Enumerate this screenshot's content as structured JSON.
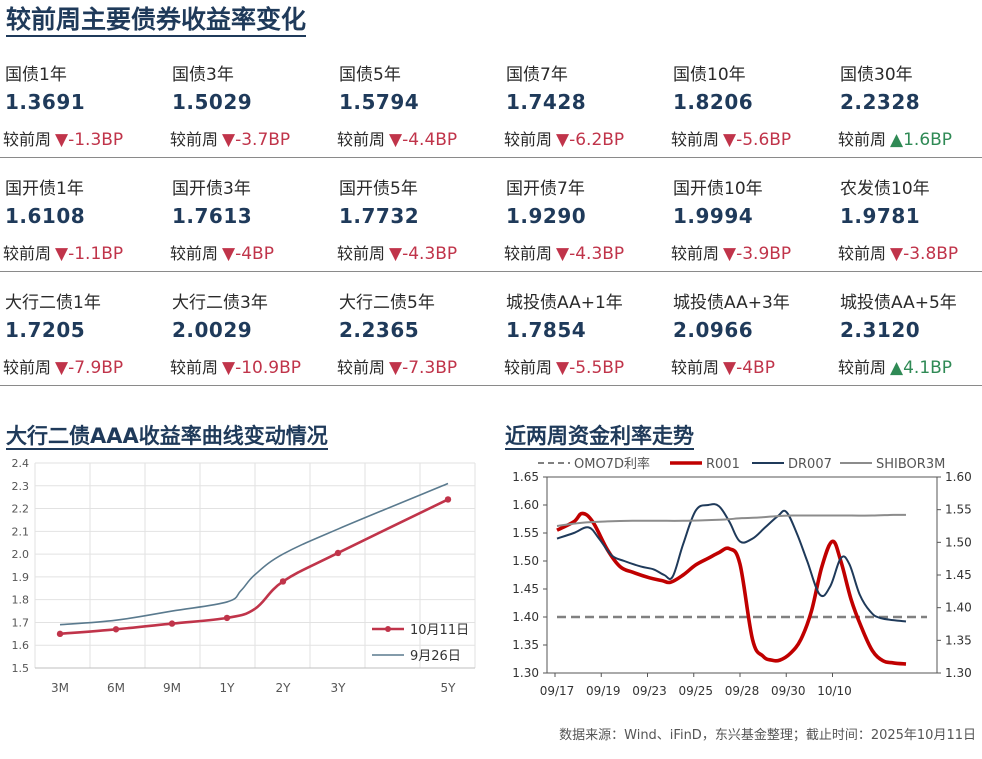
{
  "title": "较前周主要债券收益率变化",
  "change_label": "较前周",
  "grid": [
    [
      {
        "name": "国债1年",
        "value": "1.3691",
        "change": "-1.3BP",
        "dir": "down"
      },
      {
        "name": "国债3年",
        "value": "1.5029",
        "change": "-3.7BP",
        "dir": "down"
      },
      {
        "name": "国债5年",
        "value": "1.5794",
        "change": "-4.4BP",
        "dir": "down"
      },
      {
        "name": "国债7年",
        "value": "1.7428",
        "change": "-6.2BP",
        "dir": "down"
      },
      {
        "name": "国债10年",
        "value": "1.8206",
        "change": "-5.6BP",
        "dir": "down"
      },
      {
        "name": "国债30年",
        "value": "2.2328",
        "change": "1.6BP",
        "dir": "up"
      }
    ],
    [
      {
        "name": "国开债1年",
        "value": "1.6108",
        "change": "-1.1BP",
        "dir": "down"
      },
      {
        "name": "国开债3年",
        "value": "1.7613",
        "change": "-4BP",
        "dir": "down"
      },
      {
        "name": "国开债5年",
        "value": "1.7732",
        "change": "-4.3BP",
        "dir": "down"
      },
      {
        "name": "国开债7年",
        "value": "1.9290",
        "change": "-4.3BP",
        "dir": "down"
      },
      {
        "name": "国开债10年",
        "value": "1.9994",
        "change": "-3.9BP",
        "dir": "down"
      },
      {
        "name": "农发债10年",
        "value": "1.9781",
        "change": "-3.8BP",
        "dir": "down"
      }
    ],
    [
      {
        "name": "大行二债1年",
        "value": "1.7205",
        "change": "-7.9BP",
        "dir": "down"
      },
      {
        "name": "大行二债3年",
        "value": "2.0029",
        "change": "-10.9BP",
        "dir": "down"
      },
      {
        "name": "大行二债5年",
        "value": "2.2365",
        "change": "-7.3BP",
        "dir": "down"
      },
      {
        "name": "城投债AA+1年",
        "value": "1.7854",
        "change": "-5.5BP",
        "dir": "down"
      },
      {
        "name": "城投债AA+3年",
        "value": "2.0966",
        "change": "-4BP",
        "dir": "down"
      },
      {
        "name": "城投债AA+5年",
        "value": "2.3120",
        "change": "4.1BP",
        "dir": "up"
      }
    ]
  ],
  "chart_data": [
    {
      "type": "line",
      "title": "大行二债AAA收益率曲线变动情况",
      "categories": [
        "3M",
        "6M",
        "9M",
        "1Y",
        "2Y",
        "3Y",
        "5Y"
      ],
      "x_years": [
        0.25,
        0.5,
        0.75,
        1,
        2,
        3,
        5
      ],
      "ylim": [
        1.5,
        2.4
      ],
      "yticks": [
        "1.5",
        "1.6",
        "1.7",
        "1.8",
        "1.9",
        "2.0",
        "2.1",
        "2.2",
        "2.3",
        "2.4"
      ],
      "grid": true,
      "legend": "bottom-right",
      "series": [
        {
          "name": "10月11日",
          "color": "#c0344a",
          "markers": true,
          "x": [
            0.25,
            0.5,
            0.75,
            1,
            1.5,
            2,
            3,
            5
          ],
          "values": [
            1.65,
            1.67,
            1.695,
            1.72,
            1.76,
            1.88,
            2.005,
            2.24
          ]
        },
        {
          "name": "9月26日",
          "color": "#5a7a8e",
          "markers": false,
          "x": [
            0.25,
            0.5,
            0.75,
            1,
            1.25,
            1.5,
            2,
            3,
            5
          ],
          "values": [
            1.69,
            1.71,
            1.75,
            1.79,
            1.84,
            1.91,
            2.0,
            2.11,
            2.31
          ]
        }
      ]
    },
    {
      "type": "line",
      "title": "近两周资金利率走势",
      "x_ticks": [
        "09/17",
        "09/19",
        "09/23",
        "09/25",
        "09/28",
        "09/30",
        "10/10"
      ],
      "ylim_left": [
        1.3,
        1.65
      ],
      "yticks_left": [
        "1.30",
        "1.35",
        "1.40",
        "1.45",
        "1.50",
        "1.55",
        "1.60",
        "1.65"
      ],
      "ylim_right": [
        1.3,
        1.6
      ],
      "yticks_right": [
        "1.30",
        "1.35",
        "1.40",
        "1.45",
        "1.50",
        "1.55",
        "1.60"
      ],
      "grid": false,
      "legend": "top",
      "series": [
        {
          "name": "OMO7D利率",
          "color": "#808080",
          "dash": true,
          "axis": "left",
          "values": [
            1.4,
            1.4,
            1.4,
            1.4,
            1.4,
            1.4,
            1.4,
            1.4,
            1.4,
            1.4,
            1.4,
            1.4,
            1.4,
            1.4,
            1.4,
            1.4,
            1.4,
            1.4,
            1.4,
            1.4,
            1.4,
            1.4,
            1.4,
            1.4,
            1.4,
            1.4,
            1.4
          ]
        },
        {
          "name": "R001",
          "color": "#c00000",
          "axis": "left",
          "values": [
            1.555,
            1.57,
            1.585,
            1.57,
            1.52,
            1.49,
            1.48,
            1.47,
            1.465,
            1.462,
            1.475,
            1.493,
            1.505,
            1.515,
            1.522,
            1.495,
            1.36,
            1.33,
            1.323,
            1.323,
            1.335,
            1.36,
            1.41,
            1.49,
            1.535,
            1.5,
            1.43,
            1.38,
            1.34,
            1.322,
            1.318,
            1.316
          ],
          "x": [
            0,
            0.4,
            0.6,
            0.85,
            1.2,
            1.5,
            1.8,
            2.2,
            2.5,
            2.7,
            3.0,
            3.3,
            3.6,
            3.85,
            4.1,
            4.35,
            4.65,
            4.9,
            5.1,
            5.3,
            5.55,
            5.8,
            6.05,
            6.3,
            6.55,
            6.75,
            7.0,
            7.25,
            7.5,
            7.75,
            8.0,
            8.3
          ]
        },
        {
          "name": "DR007",
          "color": "#1f3a5a",
          "axis": "left",
          "values": [
            1.54,
            1.55,
            1.56,
            1.54,
            1.51,
            1.5,
            1.49,
            1.485,
            1.475,
            1.472,
            1.53,
            1.59,
            1.6,
            1.598,
            1.57,
            1.535,
            1.54,
            1.56,
            1.58,
            1.588,
            1.55,
            1.5,
            1.44,
            1.455,
            1.505,
            1.495,
            1.44,
            1.41,
            1.398,
            1.392
          ],
          "x": [
            0,
            0.4,
            0.75,
            1.0,
            1.3,
            1.6,
            2.0,
            2.3,
            2.55,
            2.75,
            3.0,
            3.3,
            3.6,
            3.85,
            4.1,
            4.35,
            4.65,
            4.95,
            5.25,
            5.45,
            5.7,
            5.95,
            6.25,
            6.5,
            6.75,
            6.95,
            7.2,
            7.45,
            7.7,
            8.3
          ]
        },
        {
          "name": "SHIBOR3M",
          "color": "#8c8c8c",
          "axis": "right",
          "values": [
            1.525,
            1.53,
            1.532,
            1.533,
            1.533,
            1.533,
            1.534,
            1.535,
            1.537,
            1.538,
            1.54,
            1.541,
            1.541,
            1.541,
            1.541,
            1.541,
            1.542,
            1.542
          ],
          "x": [
            0,
            0.6,
            1.2,
            1.8,
            2.4,
            3.0,
            3.6,
            4.0,
            4.4,
            4.8,
            5.2,
            5.6,
            6.0,
            6.5,
            7.0,
            7.5,
            8.0,
            8.3
          ]
        }
      ]
    }
  ],
  "source_note": "数据来源：Wind、iFinD，东兴基金整理；截止时间：2025年10月11日"
}
